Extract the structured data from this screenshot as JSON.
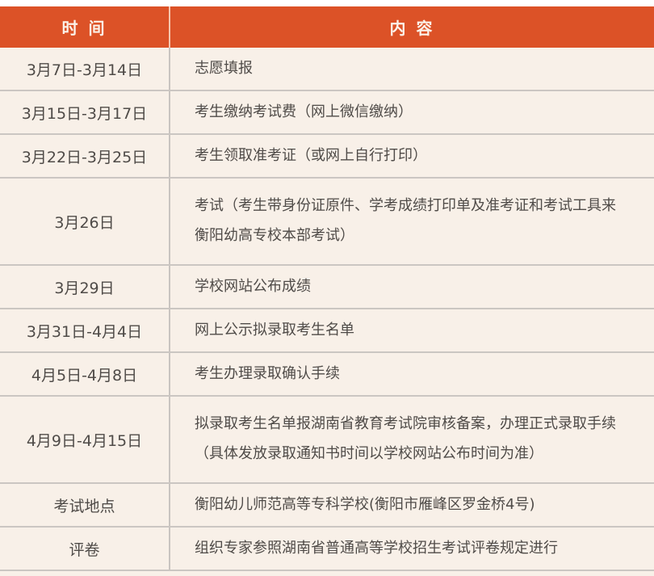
{
  "chart_data": {
    "type": "table",
    "title": "",
    "columns": [
      "时 间",
      "内 容"
    ],
    "rows": [
      [
        "3月7日-3月14日",
        "志愿填报"
      ],
      [
        "3月15日-3月17日",
        "考生缴纳考试费（网上微信缴纳）"
      ],
      [
        "3月22日-3月25日",
        "考生领取准考证（或网上自行打印）"
      ],
      [
        "3月26日",
        "考试（考生带身份证原件、学考成绩打印单及准考证和考试工具来衡阳幼高专校本部考试）"
      ],
      [
        "3月29日",
        "学校网站公布成绩"
      ],
      [
        "3月31日-4月4日",
        "网上公示拟录取考生名单"
      ],
      [
        "4月5日-4月8日",
        "考生办理录取确认手续"
      ],
      [
        "4月9日-4月15日",
        "拟录取考生名单报湖南省教育考试院审核备案，办理正式录取手续（具体发放录取通知书时间以学校网站公布时间为准）"
      ],
      [
        "考试地点",
        "衡阳幼儿师范高等专科学校(衡阳市雁峰区罗金桥4号)"
      ],
      [
        "评卷",
        "组织专家参照湖南省普通高等学校招生考试评卷规定进行"
      ]
    ],
    "layout": {
      "tall_row_indexes": [
        3,
        7
      ],
      "grid": "horizontal dividers + single vertical divider",
      "header_position": "top"
    },
    "colors": {
      "header_bg": "#DC5227",
      "header_text": "#FBF2E9",
      "cell_bg": "#F8F0E8",
      "divider": "#C9C4C0",
      "text": "#4F4B48"
    }
  }
}
